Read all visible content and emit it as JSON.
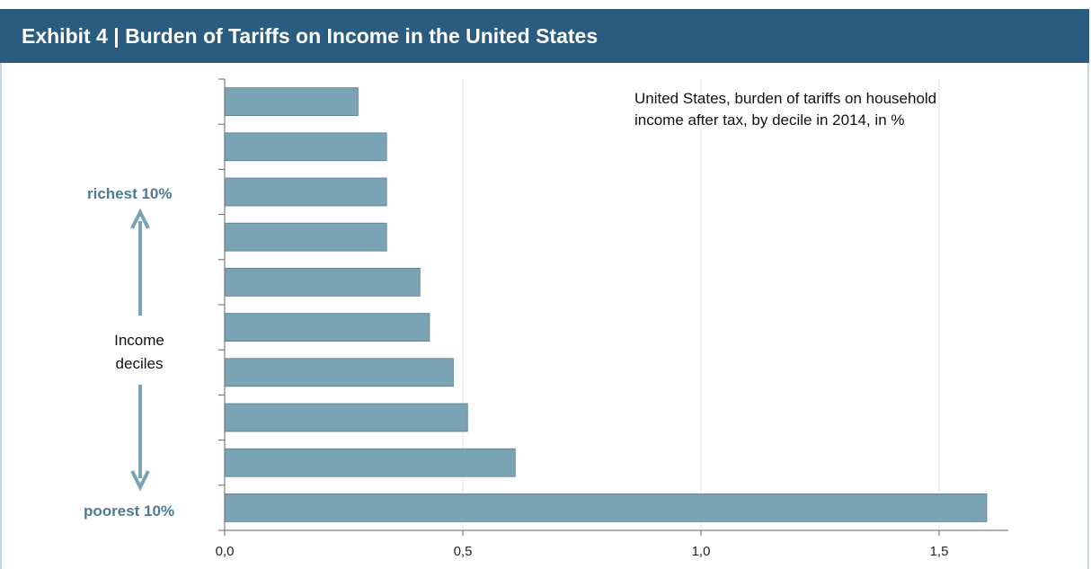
{
  "header": {
    "title": "Exhibit 4 | Burden of Tariffs on Income in the United States"
  },
  "annotation": {
    "line1": "United States, burden of tariffs on household",
    "line2": "income after tax, by decile in 2014, in %"
  },
  "side_labels": {
    "top": "richest 10%",
    "middle_line1": "Income",
    "middle_line2": "deciles",
    "bottom": "poorest 10%"
  },
  "colors": {
    "header_bg": "#2a5c80",
    "bar_fill": "#7aa3b5",
    "accent_text": "#4e7b93"
  },
  "chart_data": {
    "type": "bar",
    "orientation": "horizontal",
    "title": "United States, burden of tariffs on household income after tax, by decile in 2014, in %",
    "categories": [
      "",
      "",
      "",
      "",
      "",
      "",
      "",
      "",
      "",
      ""
    ],
    "values": [
      0.28,
      0.34,
      0.34,
      0.34,
      0.41,
      0.43,
      0.48,
      0.51,
      0.61,
      1.6
    ],
    "xlim": [
      0,
      1.65
    ],
    "xticks": [
      0,
      0.5,
      1.0,
      1.5
    ],
    "xtick_labels": [
      "0,0",
      "0,5",
      "1,0",
      "1,5"
    ],
    "grid": "vertical",
    "legend": "none"
  }
}
